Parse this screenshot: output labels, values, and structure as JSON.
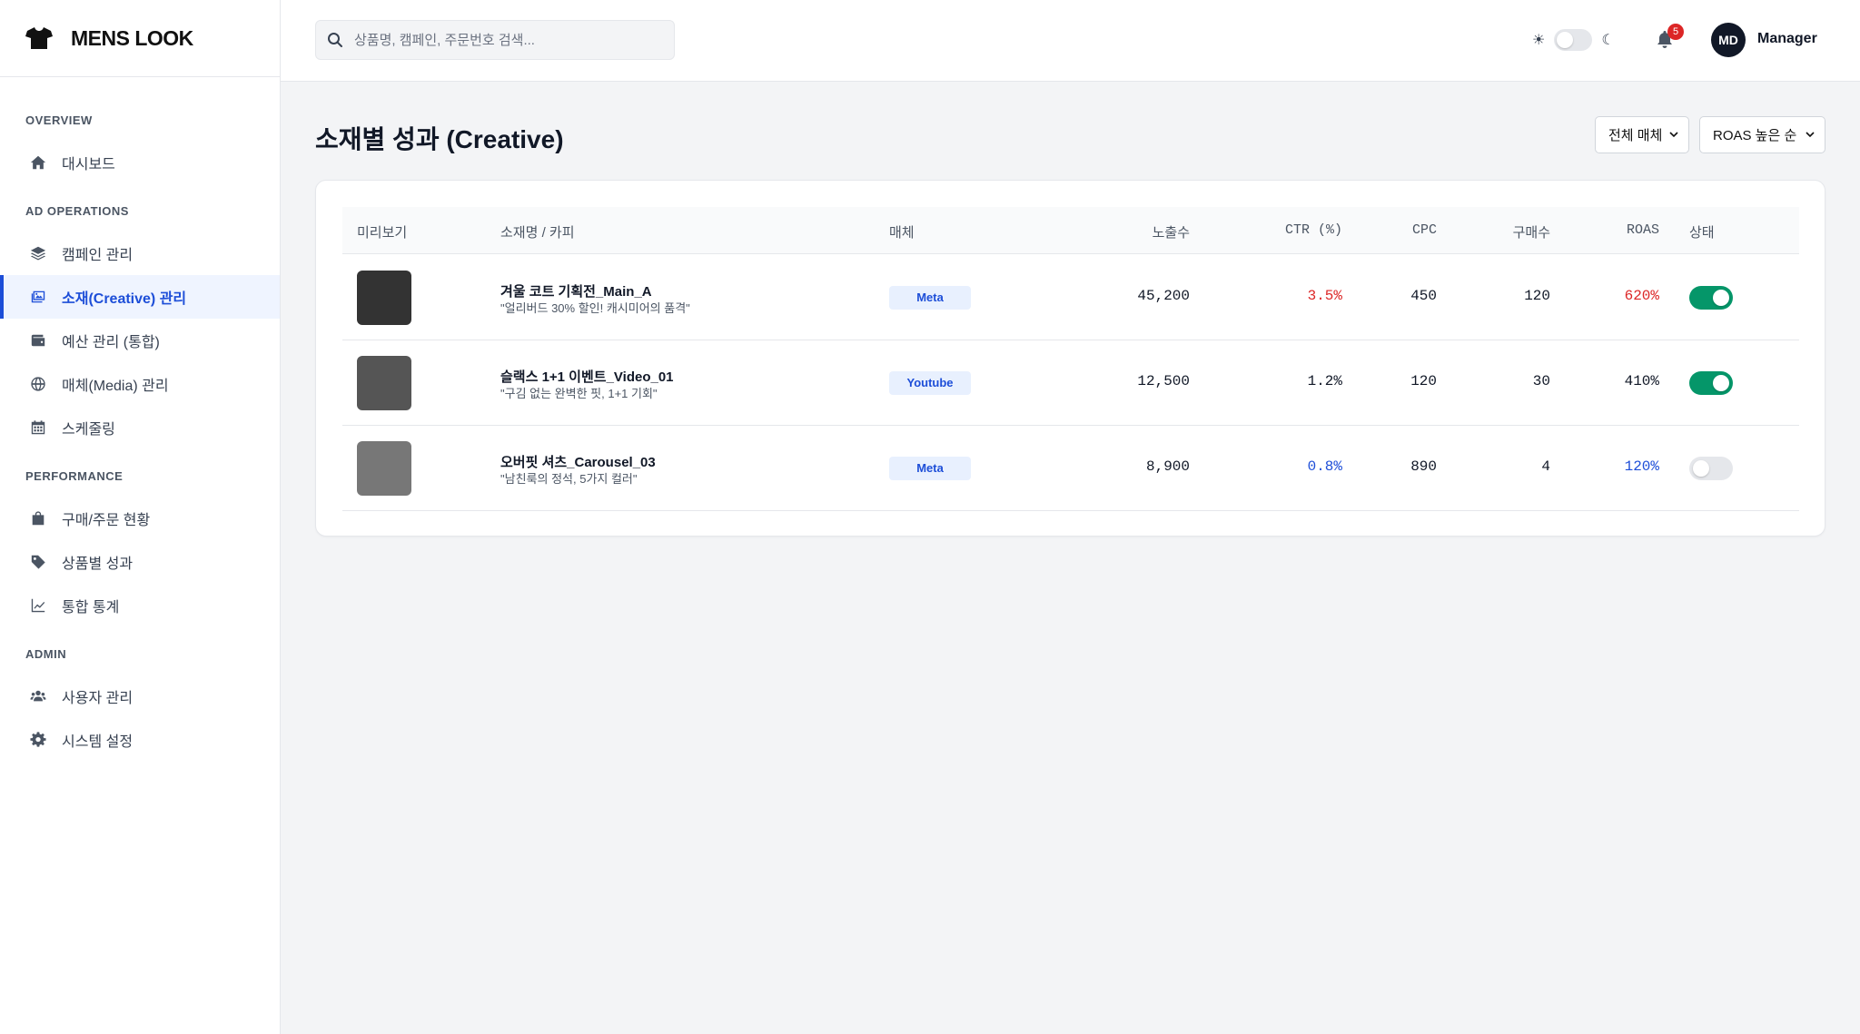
{
  "brand": {
    "name": "MENS LOOK",
    "logo_icon": "tshirt-icon"
  },
  "sidebar": {
    "sections": [
      {
        "title": "OVERVIEW",
        "items": [
          {
            "label": "대시보드",
            "icon": "home-icon"
          }
        ]
      },
      {
        "title": "AD OPERATIONS",
        "items": [
          {
            "label": "캠페인 관리",
            "icon": "layers-icon"
          },
          {
            "label": "소재(Creative) 관리",
            "icon": "image-icon",
            "active": true
          },
          {
            "label": "예산 관리 (통합)",
            "icon": "wallet-icon"
          },
          {
            "label": "매체(Media) 관리",
            "icon": "globe-icon"
          },
          {
            "label": "스케줄링",
            "icon": "calendar-icon"
          }
        ]
      },
      {
        "title": "PERFORMANCE",
        "items": [
          {
            "label": "구매/주문 현황",
            "icon": "shopping-bag-icon"
          },
          {
            "label": "상품별 성과",
            "icon": "tag-icon"
          },
          {
            "label": "통합 통계",
            "icon": "line-chart-icon"
          }
        ]
      },
      {
        "title": "ADMIN",
        "items": [
          {
            "label": "사용자 관리",
            "icon": "users-icon"
          },
          {
            "label": "시스템 설정",
            "icon": "gear-icon"
          }
        ]
      }
    ]
  },
  "header": {
    "search_placeholder": "상품명, 캠페인, 주문번호 검색...",
    "theme_toggle": {
      "sun_icon": "sun-icon",
      "moon_icon": "moon-icon",
      "dark_mode": false
    },
    "notification_count": "5",
    "avatar_initials": "MD",
    "user_name": "Manager"
  },
  "main": {
    "title": "소재별 성과 (Creative)",
    "filter_media": "전체 매체",
    "sort": "ROAS 높은 순",
    "columns": [
      "미리보기",
      "소재명 / 카피",
      "매체",
      "노출수",
      "CTR (%)",
      "CPC",
      "구매수",
      "ROAS",
      "상태"
    ],
    "rows": [
      {
        "thumb_color": "#333333",
        "name": "겨울 코트 기획전_Main_A",
        "copy": "\"얼리버드 30% 할인! 캐시미어의 품격\"",
        "media": "Meta",
        "impressions": "45,200",
        "ctr": "3.5%",
        "ctr_tone": "red",
        "cpc": "450",
        "purchases": "120",
        "roas": "620%",
        "roas_tone": "red",
        "active": true
      },
      {
        "thumb_color": "#555555",
        "name": "슬랙스 1+1 이벤트_Video_01",
        "copy": "\"구김 없는 완벽한 핏, 1+1 기회\"",
        "media": "Youtube",
        "impressions": "12,500",
        "ctr": "1.2%",
        "ctr_tone": "normal",
        "cpc": "120",
        "purchases": "30",
        "roas": "410%",
        "roas_tone": "normal",
        "active": true
      },
      {
        "thumb_color": "#777777",
        "name": "오버핏 셔츠_Carousel_03",
        "copy": "\"남친룩의 정석, 5가지 컬러\"",
        "media": "Meta",
        "impressions": "8,900",
        "ctr": "0.8%",
        "ctr_tone": "blue",
        "cpc": "890",
        "purchases": "4",
        "roas": "120%",
        "roas_tone": "blue",
        "active": false
      }
    ]
  },
  "colors": {
    "accent": "#1d4ed8",
    "positive": "#dc2626",
    "negative": "#1d4ed8",
    "toggle_on": "#059669"
  }
}
